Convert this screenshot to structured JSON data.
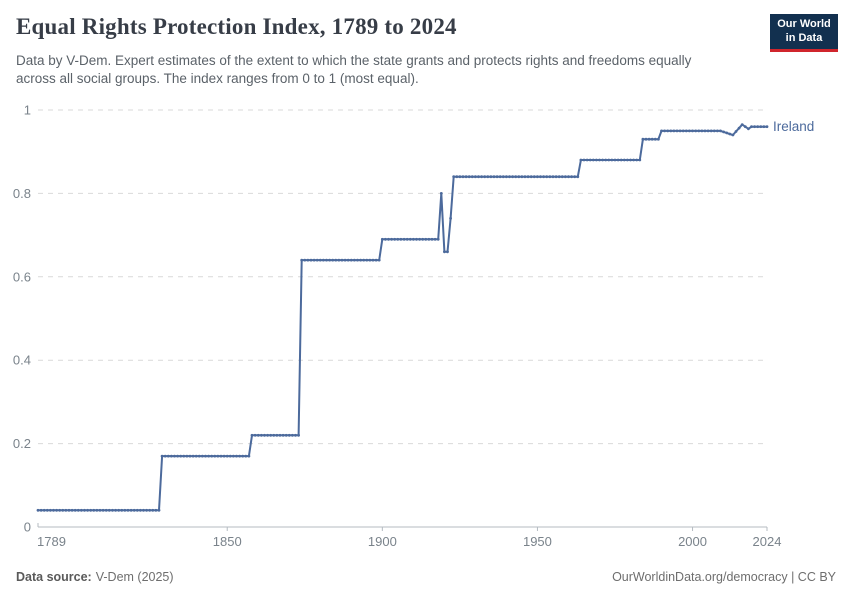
{
  "header": {
    "title": "Equal Rights Protection Index, 1789 to 2024",
    "subtitle": "Data by V-Dem. Expert estimates of the extent to which the state grants and protects rights and freedoms equally across all social groups. The index ranges from 0 to 1 (most equal).",
    "logo": {
      "line1": "Our World",
      "line2": "in Data",
      "bg_color": "#12304f",
      "accent_color": "#d0252c"
    }
  },
  "chart_data": {
    "type": "line",
    "title": "Equal Rights Protection Index, 1789 to 2024",
    "xlabel": "",
    "ylabel": "",
    "xlim": [
      1789,
      2024
    ],
    "ylim": [
      0,
      1
    ],
    "x_ticks": [
      1789,
      1850,
      1900,
      1950,
      2000,
      2024
    ],
    "x_tick_labels": [
      "1789",
      "1850",
      "1900",
      "1950",
      "2000",
      "2024"
    ],
    "y_ticks": [
      0,
      0.2,
      0.4,
      0.6,
      0.8,
      1
    ],
    "y_tick_labels": [
      "0",
      "0.2",
      "0.4",
      "0.6",
      "0.8",
      "1"
    ],
    "grid": "horizontal dashed",
    "legend_position": "end-of-line label",
    "interpolation": "yearly points, linear between listed breakpoints",
    "series": [
      {
        "name": "Ireland",
        "color": "#4c6a9c",
        "points": [
          [
            1789,
            0.04
          ],
          [
            1828,
            0.04
          ],
          [
            1829,
            0.17
          ],
          [
            1857,
            0.17
          ],
          [
            1858,
            0.22
          ],
          [
            1873,
            0.22
          ],
          [
            1874,
            0.64
          ],
          [
            1899,
            0.64
          ],
          [
            1900,
            0.69
          ],
          [
            1918,
            0.69
          ],
          [
            1919,
            0.8
          ],
          [
            1920,
            0.66
          ],
          [
            1921,
            0.66
          ],
          [
            1922,
            0.74
          ],
          [
            1923,
            0.84
          ],
          [
            1963,
            0.84
          ],
          [
            1964,
            0.88
          ],
          [
            1983,
            0.88
          ],
          [
            1984,
            0.93
          ],
          [
            1989,
            0.93
          ],
          [
            1990,
            0.95
          ],
          [
            2009,
            0.95
          ],
          [
            2013,
            0.94
          ],
          [
            2016,
            0.965
          ],
          [
            2018,
            0.955
          ],
          [
            2019,
            0.96
          ],
          [
            2024,
            0.96
          ]
        ]
      }
    ]
  },
  "footer": {
    "source_label": "Data source:",
    "source_value": "V-Dem (2025)",
    "right_text": "OurWorldinData.org/democracy | CC BY"
  }
}
